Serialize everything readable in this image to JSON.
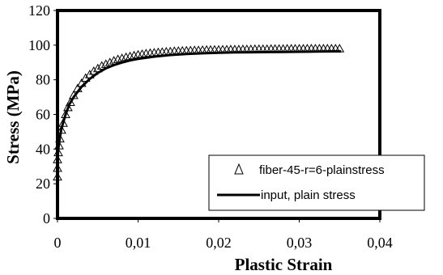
{
  "chart_data": {
    "type": "line",
    "title": "",
    "xlabel": "Plastic Strain",
    "ylabel": "Stress (MPa)",
    "xlim": [
      0,
      0.04
    ],
    "ylim": [
      0,
      120
    ],
    "x_tick_labels": [
      "0",
      "0,01",
      "0,02",
      "0,03",
      "0,04"
    ],
    "y_tick_labels": [
      "0",
      "20",
      "40",
      "60",
      "80",
      "100",
      "120"
    ],
    "grid": false,
    "legend_position": "lower-right",
    "series": [
      {
        "name": "fiber-45-r=6-plainstress",
        "style": "markers",
        "marker": "open-triangle",
        "x": [
          0,
          0,
          0,
          0.0001,
          0.0002,
          0.0003,
          0.0005,
          0.0007,
          0.001,
          0.0013,
          0.0016,
          0.002,
          0.0025,
          0.003,
          0.0035,
          0.004,
          0.0045,
          0.005,
          0.0055,
          0.006,
          0.0065,
          0.007,
          0.0075,
          0.008,
          0.0085,
          0.009,
          0.0095,
          0.01,
          0.0105,
          0.011,
          0.0115,
          0.012,
          0.0125,
          0.013,
          0.0135,
          0.014,
          0.0145,
          0.015,
          0.0155,
          0.016,
          0.0165,
          0.017,
          0.0175,
          0.018,
          0.0185,
          0.019,
          0.0195,
          0.02,
          0.0205,
          0.021,
          0.0215,
          0.022,
          0.0225,
          0.023,
          0.0235,
          0.024,
          0.0245,
          0.025,
          0.0255,
          0.026,
          0.0265,
          0.027,
          0.0275,
          0.028,
          0.0285,
          0.029,
          0.0295,
          0.03,
          0.0305,
          0.031,
          0.0315,
          0.032,
          0.0325,
          0.033,
          0.0335,
          0.034,
          0.0345,
          0.035
        ],
        "y": [
          24,
          29,
          34,
          38,
          42,
          46,
          51,
          55,
          60,
          64,
          67,
          71,
          75,
          78,
          81,
          83,
          85,
          86.5,
          88,
          89,
          90,
          91,
          91.8,
          92.4,
          93,
          93.5,
          94,
          94.4,
          94.8,
          95.1,
          95.4,
          95.6,
          95.8,
          96,
          96.2,
          96.3,
          96.5,
          96.6,
          96.7,
          96.8,
          96.9,
          97,
          97,
          97.1,
          97.2,
          97.2,
          97.3,
          97.3,
          97.4,
          97.4,
          97.5,
          97.5,
          97.5,
          97.6,
          97.6,
          97.6,
          97.7,
          97.7,
          97.7,
          97.7,
          97.8,
          97.8,
          97.8,
          97.8,
          97.9,
          97.9,
          97.9,
          97.9,
          97.9,
          98,
          98,
          98,
          98,
          98,
          98,
          98,
          98,
          98
        ]
      },
      {
        "name": "input, plain stress",
        "style": "line",
        "x": [
          0,
          0.0001,
          0.0003,
          0.0005,
          0.001,
          0.0015,
          0.002,
          0.003,
          0.004,
          0.005,
          0.006,
          0.007,
          0.008,
          0.009,
          0.01,
          0.012,
          0.014,
          0.016,
          0.018,
          0.02,
          0.022,
          0.024,
          0.026,
          0.028,
          0.03,
          0.032,
          0.034,
          0.0352
        ],
        "y": [
          34,
          40,
          47,
          52,
          60,
          66,
          70,
          76,
          80.5,
          84,
          86.6,
          88.5,
          90,
          91.2,
          92.1,
          93.4,
          94.3,
          94.9,
          95.3,
          95.6,
          95.8,
          95.9,
          96,
          96.1,
          96.2,
          96.3,
          96.4,
          96.4
        ]
      }
    ]
  }
}
